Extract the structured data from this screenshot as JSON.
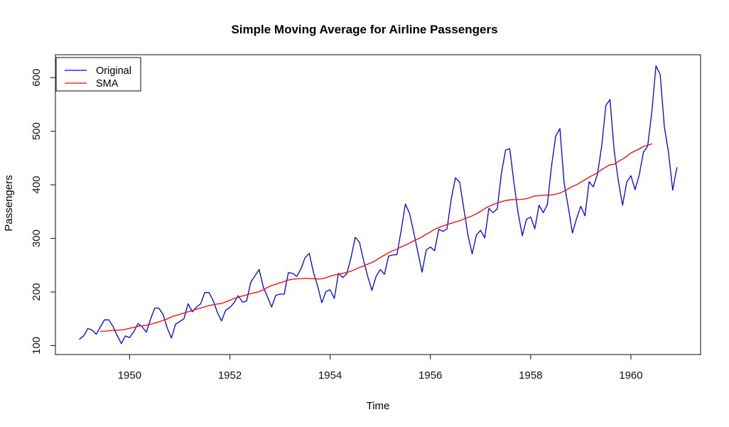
{
  "chart_data": {
    "type": "line",
    "title": "Simple Moving Average for Airline Passengers",
    "xlabel": "Time",
    "ylabel": "Passengers",
    "xlim": [
      1948.52,
      1961.39
    ],
    "ylim": [
      83.3,
      642.7
    ],
    "x_ticks": [
      1950,
      1952,
      1954,
      1956,
      1958,
      1960
    ],
    "y_ticks": [
      100,
      200,
      300,
      400,
      500,
      600
    ],
    "grid": false,
    "legend_position": "top-left",
    "series": [
      {
        "name": "Original",
        "color": "#0000ff",
        "x_start": 1949.0,
        "x_step": 0.0833333,
        "values": [
          112,
          118,
          132,
          129,
          121,
          135,
          148,
          148,
          136,
          119,
          104,
          118,
          115,
          126,
          141,
          135,
          125,
          149,
          170,
          170,
          158,
          133,
          114,
          140,
          145,
          150,
          178,
          163,
          172,
          178,
          199,
          199,
          184,
          162,
          146,
          166,
          171,
          180,
          193,
          181,
          183,
          218,
          230,
          242,
          209,
          191,
          172,
          194,
          196,
          196,
          236,
          235,
          229,
          243,
          264,
          272,
          237,
          211,
          180,
          201,
          204,
          188,
          235,
          227,
          234,
          264,
          302,
          293,
          259,
          229,
          203,
          229,
          242,
          233,
          267,
          269,
          270,
          315,
          364,
          347,
          312,
          274,
          237,
          278,
          284,
          277,
          317,
          313,
          318,
          374,
          413,
          405,
          355,
          306,
          271,
          306,
          315,
          301,
          356,
          348,
          355,
          422,
          465,
          467,
          404,
          347,
          305,
          336,
          340,
          318,
          362,
          348,
          363,
          435,
          491,
          505,
          404,
          359,
          310,
          337,
          360,
          342,
          406,
          396,
          420,
          472,
          548,
          559,
          463,
          407,
          362,
          405,
          417,
          391,
          419,
          461,
          472,
          535,
          622,
          606,
          508,
          461,
          390,
          432
        ]
      },
      {
        "name": "SMA",
        "color": "#ff0000",
        "x_start": 1949.4167,
        "x_step": 0.0833333,
        "values": [
          126.67,
          126.92,
          127.58,
          128.33,
          128.83,
          129.17,
          130.33,
          132.17,
          134.0,
          135.83,
          137.0,
          137.83,
          139.67,
          142.17,
          144.17,
          147.25,
          149.58,
          153.5,
          155.92,
          158.33,
          160.75,
          162.92,
          165.33,
          168.0,
          170.17,
          172.33,
          174.83,
          176.08,
          177.58,
          178.5,
          181.83,
          184.42,
          188.0,
          190.08,
          192.5,
          194.67,
          197.0,
          199.08,
          200.42,
          204.0,
          208.5,
          212.33,
          214.42,
          217.25,
          219.75,
          222.08,
          223.75,
          224.42,
          225.0,
          225.67,
          225.0,
          224.92,
          224.25,
          224.67,
          226.42,
          229.58,
          231.33,
          233.17,
          234.67,
          236.58,
          238.92,
          242.08,
          245.83,
          248.5,
          252.0,
          255.0,
          259.25,
          264.42,
          268.92,
          273.33,
          277.08,
          279.92,
          284.0,
          287.5,
          291.17,
          295.33,
          299.0,
          303.0,
          307.92,
          312.0,
          316.83,
          320.42,
          323.08,
          325.92,
          328.25,
          330.83,
          332.83,
          336.08,
          339.0,
          342.08,
          346.08,
          350.42,
          355.58,
          359.67,
          363.08,
          365.92,
          368.42,
          370.5,
          371.92,
          372.42,
          372.42,
          373.08,
          374.17,
          376.33,
          379.5,
          379.5,
          380.5,
          380.92,
          381.0,
          382.67,
          384.67,
          388.33,
          392.33,
          397.08,
          400.17,
          404.92,
          409.42,
          414.33,
          418.33,
          422.67,
          428.33,
          433.08,
          437.17,
          438.25,
          443.67,
          448.0,
          453.25,
          459.42,
          463.33,
          467.08,
          471.58,
          473.92,
          476.17
        ]
      }
    ]
  }
}
